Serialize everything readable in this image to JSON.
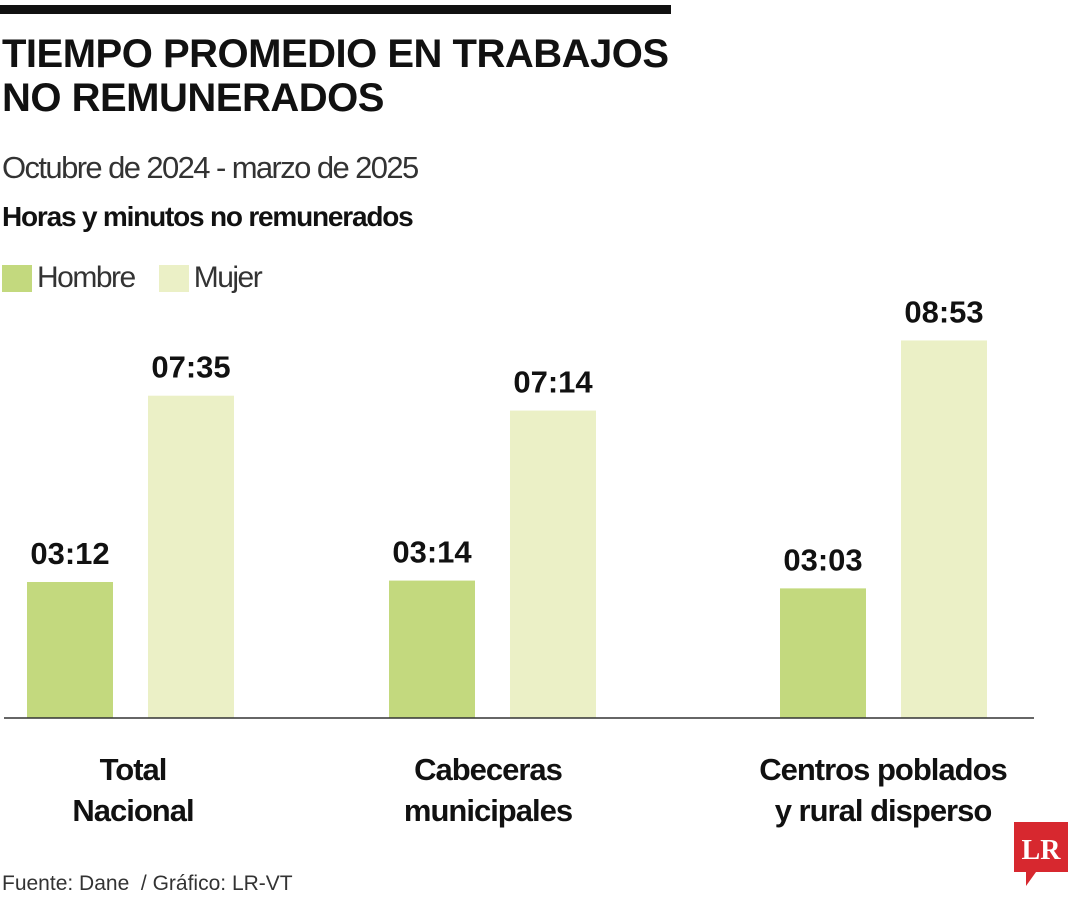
{
  "header": {
    "title_line1": "TIEMPO PROMEDIO EN TRABAJOS",
    "title_line2": "NO REMUNERADOS",
    "subtitle": "Octubre de 2024 - marzo de 2025",
    "unit_label": "Horas y minutos no remunerados"
  },
  "legend": {
    "items": [
      {
        "label": "Hombre",
        "color": "#c3d97e"
      },
      {
        "label": "Mujer",
        "color": "#ebf0c6"
      }
    ]
  },
  "chart_data": {
    "type": "bar",
    "categories": [
      [
        "Total",
        "Nacional"
      ],
      [
        "Cabeceras",
        "municipales"
      ],
      [
        "Centros poblados",
        "y rural disperso"
      ]
    ],
    "series": [
      {
        "name": "Hombre",
        "color": "#c3d97e",
        "values": [
          3.2,
          3.2333,
          3.05
        ],
        "labels": [
          "03:12",
          "03:14",
          "03:03"
        ]
      },
      {
        "name": "Mujer",
        "color": "#ebf0c6",
        "values": [
          7.5833,
          7.2333,
          8.8833
        ],
        "labels": [
          "07:35",
          "07:14",
          "08:53"
        ]
      }
    ],
    "ylim": [
      0,
      10
    ],
    "grid": false,
    "legend_position": "top-left"
  },
  "footer": {
    "source": "Fuente: Dane  / Gráfico: LR-VT",
    "logo_text": "LR",
    "logo_color": "#d7282f"
  }
}
